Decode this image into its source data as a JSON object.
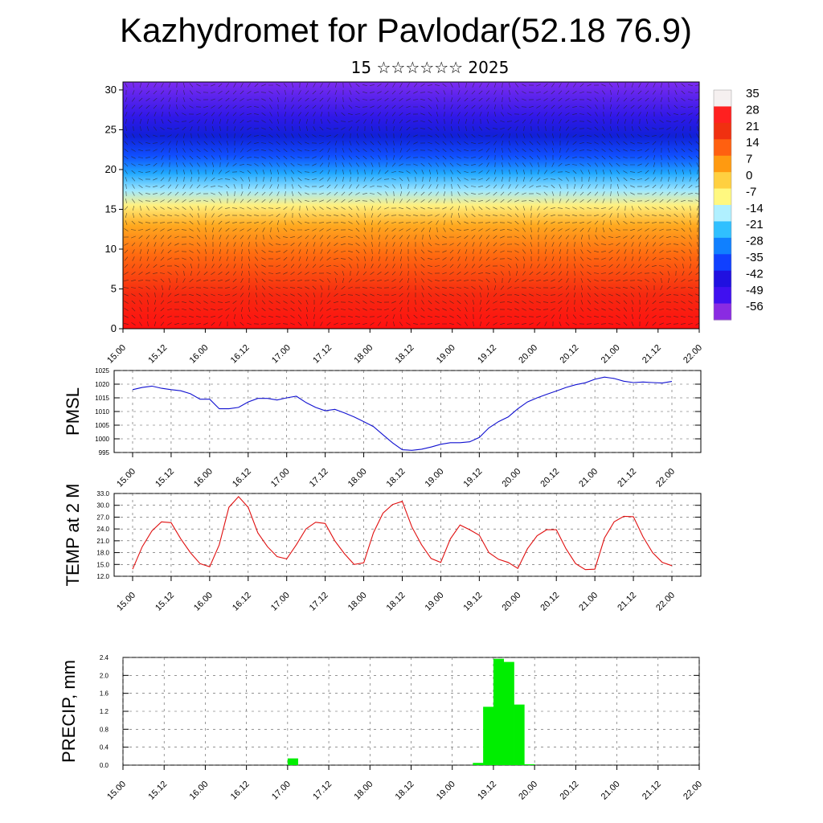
{
  "header": {
    "title": "Kazhydromet for Pavlodar(52.18 76.9)",
    "subtitle": "15 ☆☆☆☆☆☆ 2025"
  },
  "colors": {
    "pmsl_line": "#1010d0",
    "temp_line": "#e01010",
    "precip_bar": "#00ee00",
    "grid": "#555555"
  },
  "time_labels": [
    "15.00",
    "15.12",
    "16.00",
    "16.12",
    "17.00",
    "17.12",
    "18.00",
    "18.12",
    "19.00",
    "19.12",
    "20.00",
    "20.12",
    "21.00",
    "21.12",
    "22.00"
  ],
  "chart_data": [
    {
      "type": "heatmap",
      "name": "cross-section",
      "y_ticks": [
        "0",
        "5",
        "10",
        "15",
        "20",
        "25",
        "30"
      ],
      "ylim": [
        0,
        31
      ],
      "colorbar": {
        "labels": [
          "35",
          "28",
          "21",
          "14",
          "7",
          "0",
          "-7",
          "-14",
          "-21",
          "-28",
          "-35",
          "-42",
          "-49",
          "-56"
        ],
        "colors": [
          "#f5f0f0",
          "#ff2020",
          "#f03010",
          "#ff6010",
          "#ff9a10",
          "#ffd040",
          "#fff880",
          "#b0f0ff",
          "#30c0ff",
          "#1080ff",
          "#1040ff",
          "#2010e0",
          "#4010f0",
          "#8a2be2"
        ]
      },
      "overlay": "wind vectors"
    },
    {
      "type": "line",
      "name": "PMSL",
      "ylabel": "PMSL",
      "yticks": [
        "995",
        "1000",
        "1005",
        "1010",
        "1015",
        "1020",
        "1025"
      ],
      "ylim": [
        995,
        1025
      ],
      "x_count": 57,
      "values": [
        1018,
        1018.8,
        1019.3,
        1018.5,
        1018,
        1017.6,
        1016.5,
        1014.5,
        1014.5,
        1011,
        1011,
        1011.5,
        1013.5,
        1014.8,
        1014.8,
        1014.2,
        1015,
        1015.6,
        1013.3,
        1011.5,
        1010.3,
        1010.8,
        1009.5,
        1008,
        1006.3,
        1004.5,
        1001.5,
        998.5,
        996,
        995.8,
        996.2,
        997,
        998,
        998.6,
        998.6,
        998.9,
        1000.5,
        1004,
        1006.3,
        1008,
        1011,
        1013.5,
        1015,
        1016.3,
        1017.5,
        1018.8,
        1019.8,
        1020.5,
        1021.8,
        1022.6,
        1022.1,
        1021.1,
        1020.6,
        1020.8,
        1020.6,
        1020.4,
        1021
      ]
    },
    {
      "type": "line",
      "name": "TEMP at 2 M",
      "ylabel": "TEMP at 2 M",
      "yticks": [
        "12.0",
        "15.0",
        "18.0",
        "21.0",
        "24.0",
        "27.0",
        "30.0",
        "33.0"
      ],
      "ylim": [
        12,
        33
      ],
      "x_count": 57,
      "values": [
        13.8,
        19.5,
        23.5,
        25.8,
        25.6,
        21.5,
        18,
        15.2,
        14.4,
        20,
        29.5,
        32.2,
        29.5,
        23,
        19.5,
        17,
        16.4,
        20,
        24,
        25.7,
        25.4,
        21,
        17.7,
        15,
        15.4,
        23,
        28,
        30.2,
        31,
        24.5,
        20,
        16.5,
        15.5,
        21.5,
        25,
        23.8,
        22.4,
        18,
        16.3,
        15.5,
        14,
        19,
        22.3,
        23.8,
        23.8,
        19,
        15.2,
        13.7,
        13.8,
        21.7,
        25.8,
        27.2,
        27.1,
        22,
        18,
        15.5,
        14.7
      ]
    },
    {
      "type": "bar",
      "name": "PRECIP, mm",
      "ylabel": "PRECIP, mm",
      "yticks": [
        "0.0",
        "0.4",
        "0.8",
        "1.2",
        "1.6",
        "2.0",
        "2.4"
      ],
      "ylim": [
        0,
        2.4
      ],
      "bins": 56,
      "values": [
        0,
        0,
        0,
        0,
        0,
        0,
        0,
        0,
        0,
        0,
        0,
        0,
        0,
        0,
        0,
        0,
        0.15,
        0,
        0,
        0,
        0,
        0,
        0,
        0,
        0,
        0,
        0,
        0,
        0,
        0,
        0,
        0,
        0,
        0,
        0.05,
        1.3,
        2.37,
        2.3,
        1.35,
        0.02,
        0,
        0,
        0,
        0,
        0,
        0,
        0,
        0,
        0,
        0,
        0,
        0,
        0,
        0,
        0,
        0
      ]
    }
  ]
}
